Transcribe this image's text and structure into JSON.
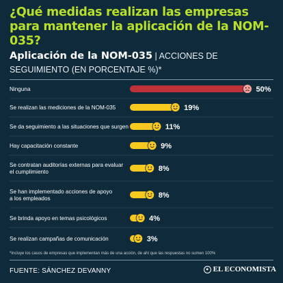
{
  "header": {
    "title": "¿Qué medidas realizan las empresas para mantener la aplicación de la NOM-035?",
    "subtitle_main": "Aplicación de la NOM-035",
    "subtitle_separator": " | ",
    "subtitle_rest": "ACCIONES DE SEGUIMIENTO (EN PORCENTAJE %)*"
  },
  "footer": {
    "footnote": "*Incluye los casos de empresas que implementan más de una acción, de ahí que las respuestas no sumen 100%",
    "source": "FUENTE: SÁNCHEZ DEVANNY",
    "logo_text": "EL ECONOMISTA"
  },
  "colors": {
    "background": "#0f2a3a",
    "title": "#b8df2c",
    "highlight_bar": "#c0323a",
    "bar": "#f7c820",
    "face_highlight": "#f4a09a",
    "face": "#f7c820"
  },
  "chart_data": {
    "type": "bar",
    "orientation": "horizontal",
    "categories": [
      "Ninguna",
      "Se realizan las mediciones de la NOM-035",
      "Se da seguimiento a las situaciones que surgen",
      "Hay capacitación constante",
      "Se contratan auditorías externas para evaluar el cumplimiento",
      "Se han implementado acciones de apoyo a los empleados",
      "Se brinda apoyo en temas psicológicos",
      "Se realizan campañas de comunicación"
    ],
    "category_lines": [
      [
        "Ninguna"
      ],
      [
        "Se realizan las mediciones de la NOM-035"
      ],
      [
        "Se da seguimiento a las situaciones que surgen"
      ],
      [
        "Hay capacitación constante"
      ],
      [
        "Se contratan auditorías externas para evaluar",
        "el cumplimiento"
      ],
      [
        "Se han implementado acciones de apoyo",
        "a los empleados"
      ],
      [
        "Se brinda apoyo en temas psicológicos"
      ],
      [
        "Se realizan campañas de comunicación"
      ]
    ],
    "values": [
      50,
      19,
      11,
      9,
      8,
      8,
      4,
      3
    ],
    "value_labels": [
      "50%",
      "19%",
      "11%",
      "9%",
      "8%",
      "8%",
      "4%",
      "3%"
    ],
    "highlight_index": 0,
    "xlim": [
      0,
      50
    ],
    "grid": false,
    "legend": "none"
  }
}
